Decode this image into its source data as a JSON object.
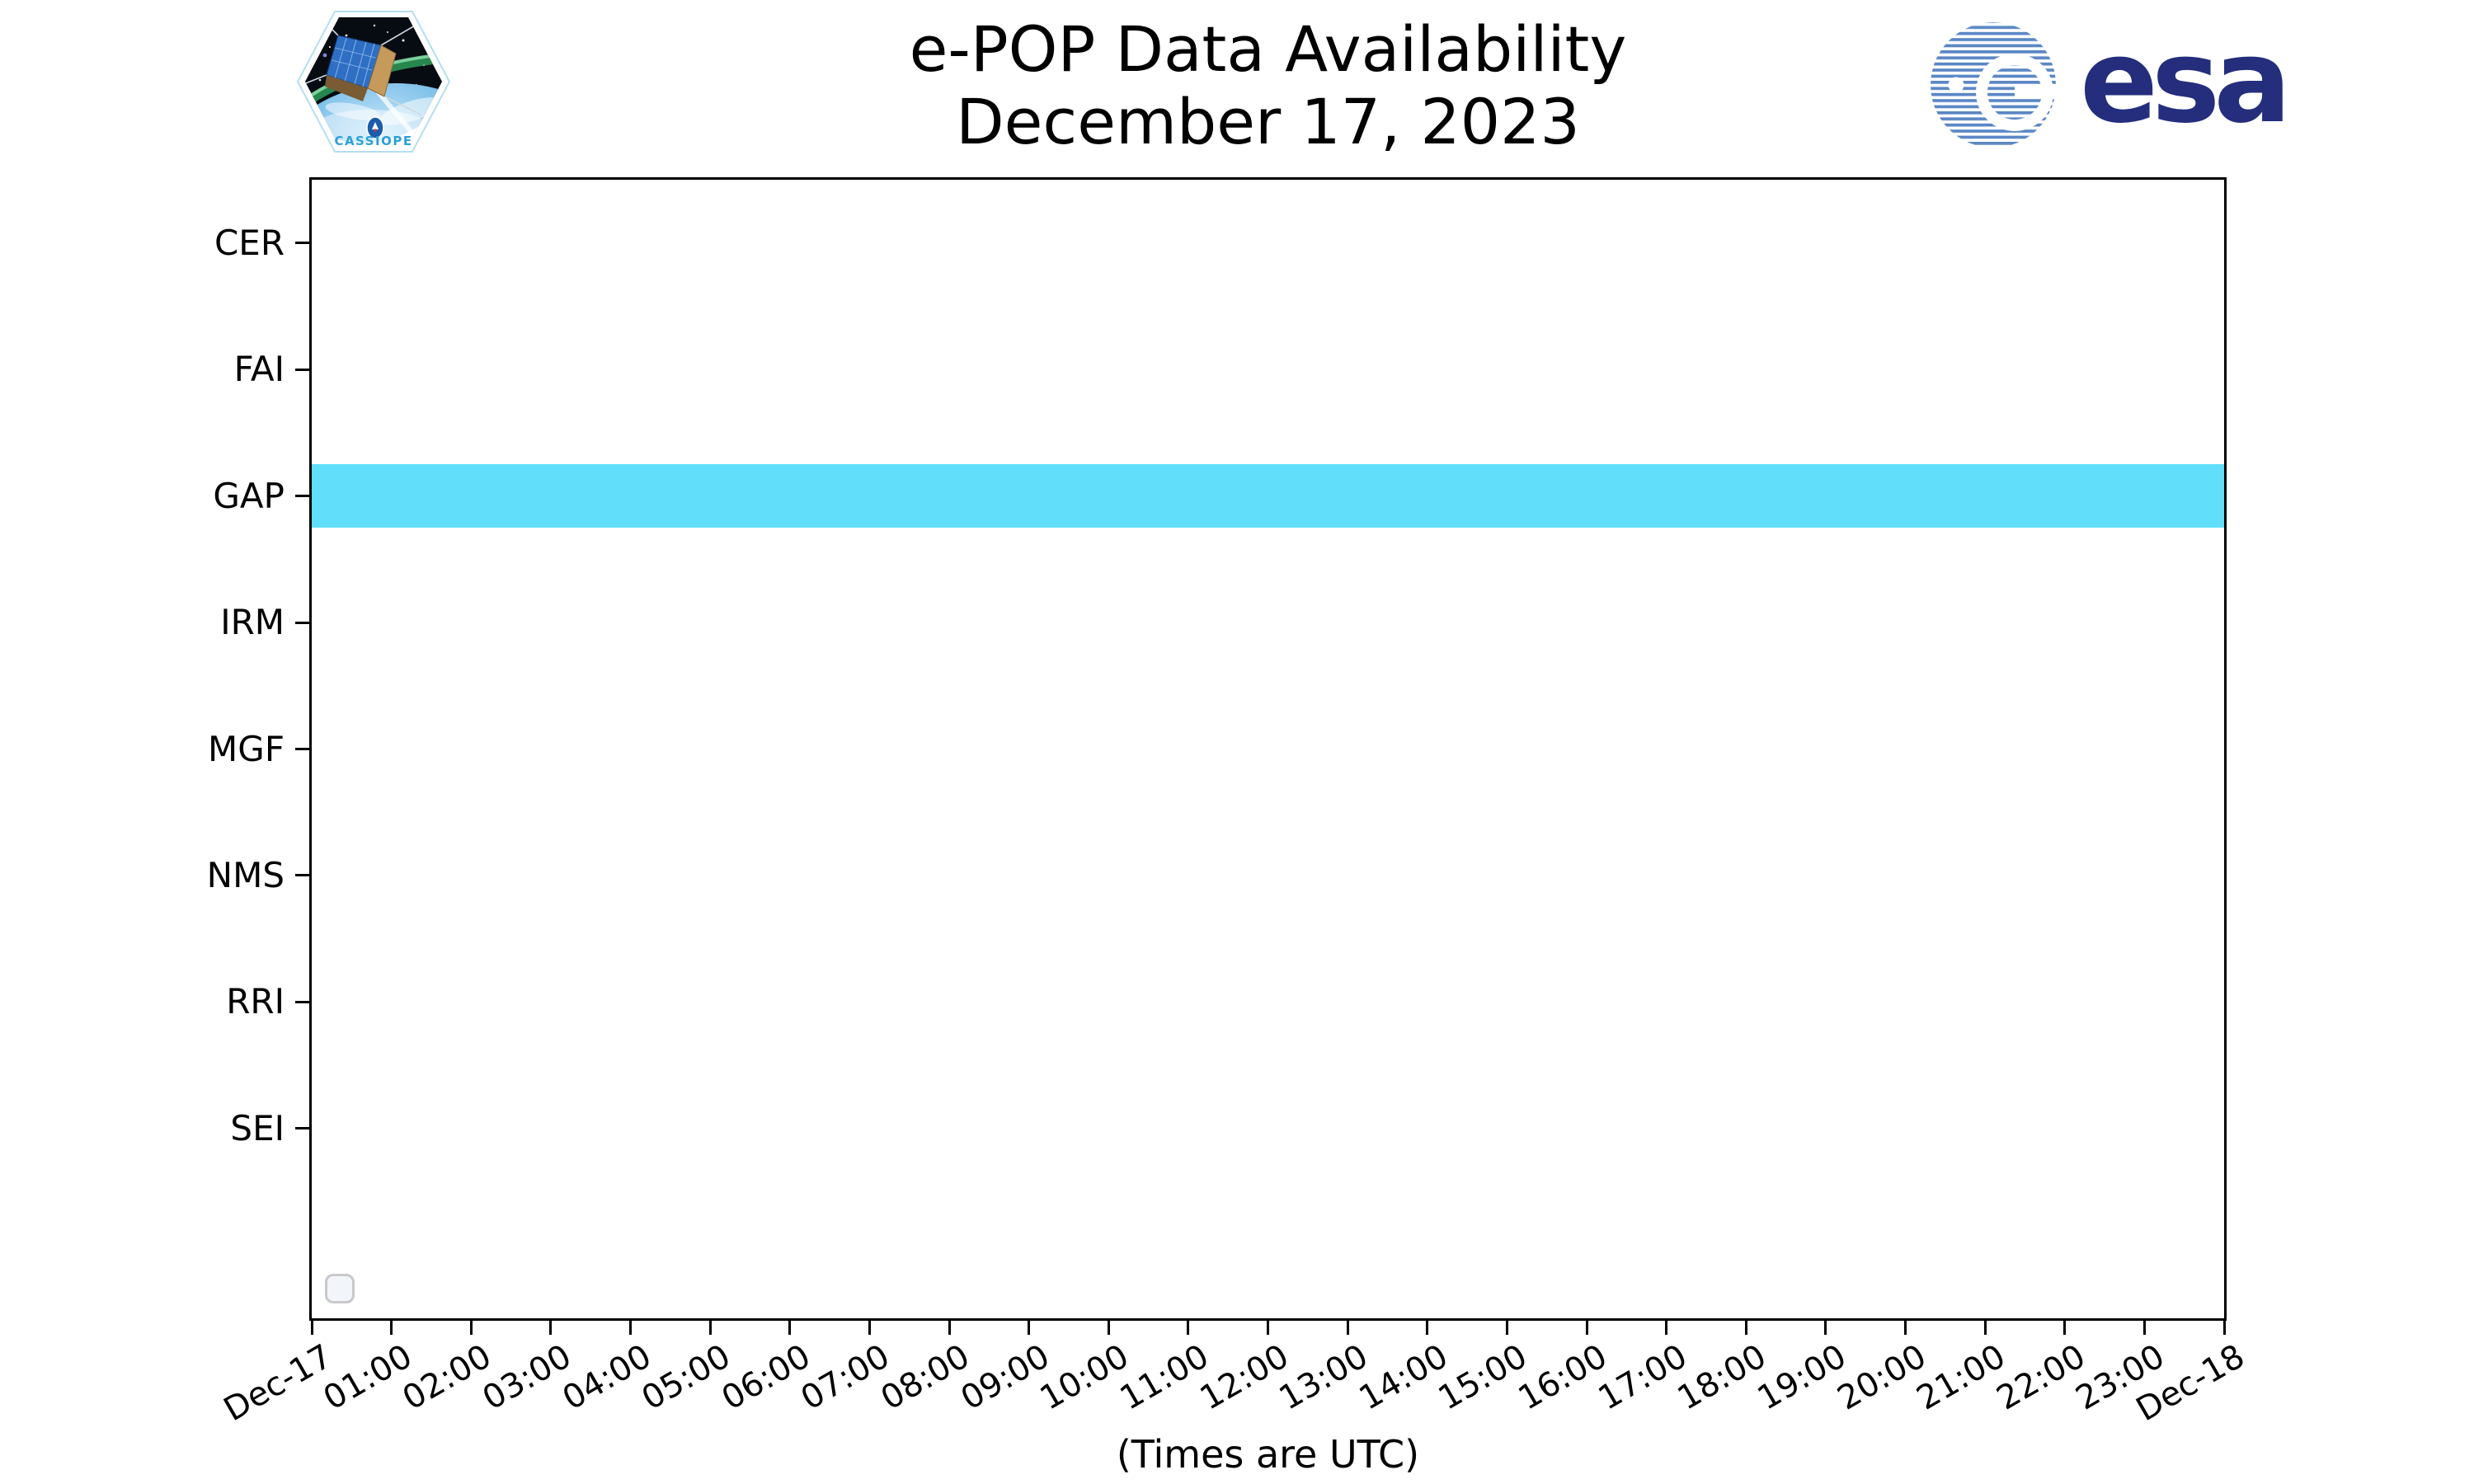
{
  "title": {
    "line1": "e-POP Data Availability",
    "line2": "December 17, 2023"
  },
  "branding": {
    "mission_patch": {
      "label": "CASSIOPE"
    },
    "esa_logo": {
      "text": "esa"
    }
  },
  "axes": {
    "y_labels": [
      "CER",
      "FAI",
      "GAP",
      "IRM",
      "MGF",
      "NMS",
      "RRI",
      "SEI"
    ],
    "x_tick_labels": [
      "Dec-17",
      "01:00",
      "02:00",
      "03:00",
      "04:00",
      "05:00",
      "06:00",
      "07:00",
      "08:00",
      "09:00",
      "10:00",
      "11:00",
      "12:00",
      "13:00",
      "14:00",
      "15:00",
      "16:00",
      "17:00",
      "18:00",
      "19:00",
      "20:00",
      "21:00",
      "22:00",
      "23:00",
      "Dec-18"
    ],
    "x_label": "(Times are UTC)"
  },
  "chart_data": {
    "type": "bar",
    "variant": "horizontal-availability-timeline",
    "title": "e-POP Data Availability",
    "subtitle": "December 17, 2023",
    "categories": [
      "CER",
      "FAI",
      "GAP",
      "IRM",
      "MGF",
      "NMS",
      "RRI",
      "SEI"
    ],
    "x_axis": {
      "label": "(Times are UTC)",
      "start": "Dec-17 00:00",
      "end": "Dec-18 00:00",
      "tick_interval_hours": 1,
      "range_hours": [
        0,
        24
      ]
    },
    "availability_hours": {
      "CER": [],
      "FAI": [],
      "GAP": [
        [
          0,
          24
        ]
      ],
      "IRM": [],
      "MGF": [],
      "NMS": [],
      "RRI": [],
      "SEI": [],
      "": []
    },
    "bar_color": "#60DEFA",
    "bar_height_fraction": 0.5,
    "row_slots": 9,
    "grid": false,
    "legend": {
      "visible": true,
      "entries": []
    }
  },
  "colors": {
    "bar": "#60DEFA",
    "axis": "#000000",
    "esa_navy": "#242E7D",
    "globe_blue": "#5B87C5",
    "cassiope_blue": "#2BA0D8",
    "legend_border": "#C9C9C9",
    "legend_bg": "#F2F5F9"
  }
}
